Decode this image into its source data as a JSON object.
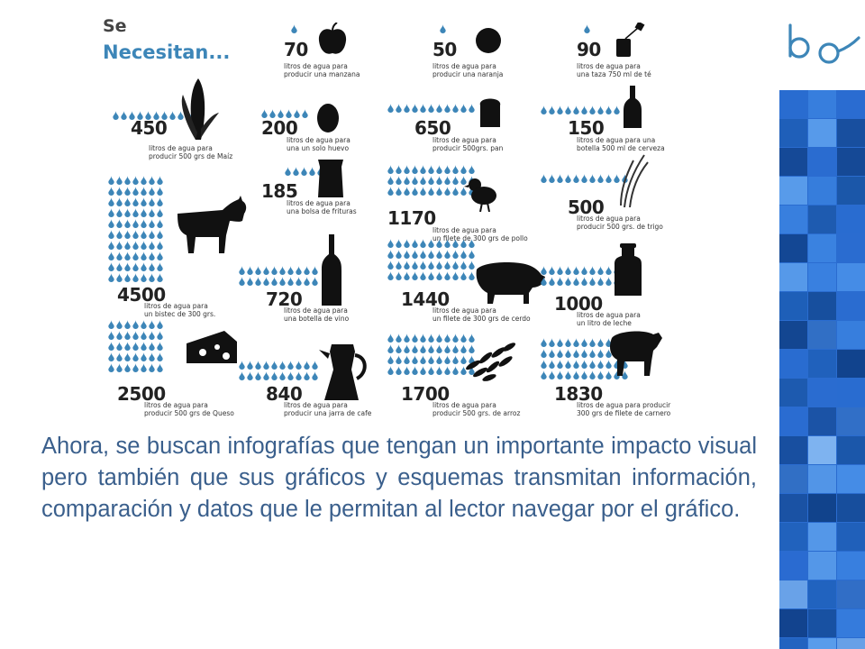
{
  "infographic": {
    "title_line1": "Se",
    "title_line2": "Necesitan...",
    "drop_color": "#3d86b8",
    "items": [
      {
        "amount": "70",
        "caption": [
          "litros de agua para",
          "producir una manzana"
        ],
        "icon": "apple-icon"
      },
      {
        "amount": "50",
        "caption": [
          "litros de agua para",
          "producir una naranja"
        ],
        "icon": "orange-icon"
      },
      {
        "amount": "90",
        "caption": [
          "litros de agua para",
          "una taza 750 ml de té"
        ],
        "icon": "tea-cup-icon"
      },
      {
        "amount": "450",
        "caption": [
          "litros de agua para",
          "producir 500 grs de Maíz"
        ],
        "icon": "corn-icon"
      },
      {
        "amount": "200",
        "caption": [
          "litros de agua para",
          "una un solo huevo"
        ],
        "icon": "egg-icon"
      },
      {
        "amount": "650",
        "caption": [
          "litros de agua para",
          "producir 500grs. pan"
        ],
        "icon": "bread-icon"
      },
      {
        "amount": "150",
        "caption": [
          "litros de agua para una",
          "botella 500 ml de cerveza"
        ],
        "icon": "beer-bottle-icon"
      },
      {
        "amount": "185",
        "caption": [
          "litros de agua para",
          "una bolsa de frituras"
        ],
        "icon": "chips-bag-icon"
      },
      {
        "amount": "1170",
        "caption": [
          "litros de agua para",
          "un filete de 300 grs de pollo"
        ],
        "icon": "chicken-icon"
      },
      {
        "amount": "500",
        "caption": [
          "litros de agua para",
          "producir 500 grs. de trigo"
        ],
        "icon": "wheat-icon"
      },
      {
        "amount": "4500",
        "caption": [
          "litros de agua para",
          "un bistec de 300 grs."
        ],
        "icon": "cow-icon"
      },
      {
        "amount": "720",
        "caption": [
          "litros de agua para",
          "una botella de vino"
        ],
        "icon": "wine-bottle-icon"
      },
      {
        "amount": "1440",
        "caption": [
          "litros de agua para",
          "un filete de 300 grs de cerdo"
        ],
        "icon": "pig-icon"
      },
      {
        "amount": "1000",
        "caption": [
          "litros de agua para",
          "un litro de leche"
        ],
        "icon": "milk-can-icon"
      },
      {
        "amount": "2500",
        "caption": [
          "litros de agua para",
          "producir 500 grs de Queso"
        ],
        "icon": "cheese-icon"
      },
      {
        "amount": "840",
        "caption": [
          "litros de agua para",
          "producir una jarra de cafe"
        ],
        "icon": "coffee-pot-icon"
      },
      {
        "amount": "1700",
        "caption": [
          "litros de agua para",
          "producir 500 grs. de arroz"
        ],
        "icon": "rice-icon"
      },
      {
        "amount": "1830",
        "caption": [
          "litros de agua para producir",
          "300 grs de filete de carnero"
        ],
        "icon": "sheep-icon"
      }
    ]
  },
  "body_text": "Ahora, se buscan infografías que tengan un importante impacto visual pero también que sus gráficos y esquemas transmitan información, comparación y datos que le permitan al lector navegar por el gráfico.",
  "sidebar": {
    "logo": "bo-logo-icon",
    "accent_color": "#2a6cd0"
  }
}
